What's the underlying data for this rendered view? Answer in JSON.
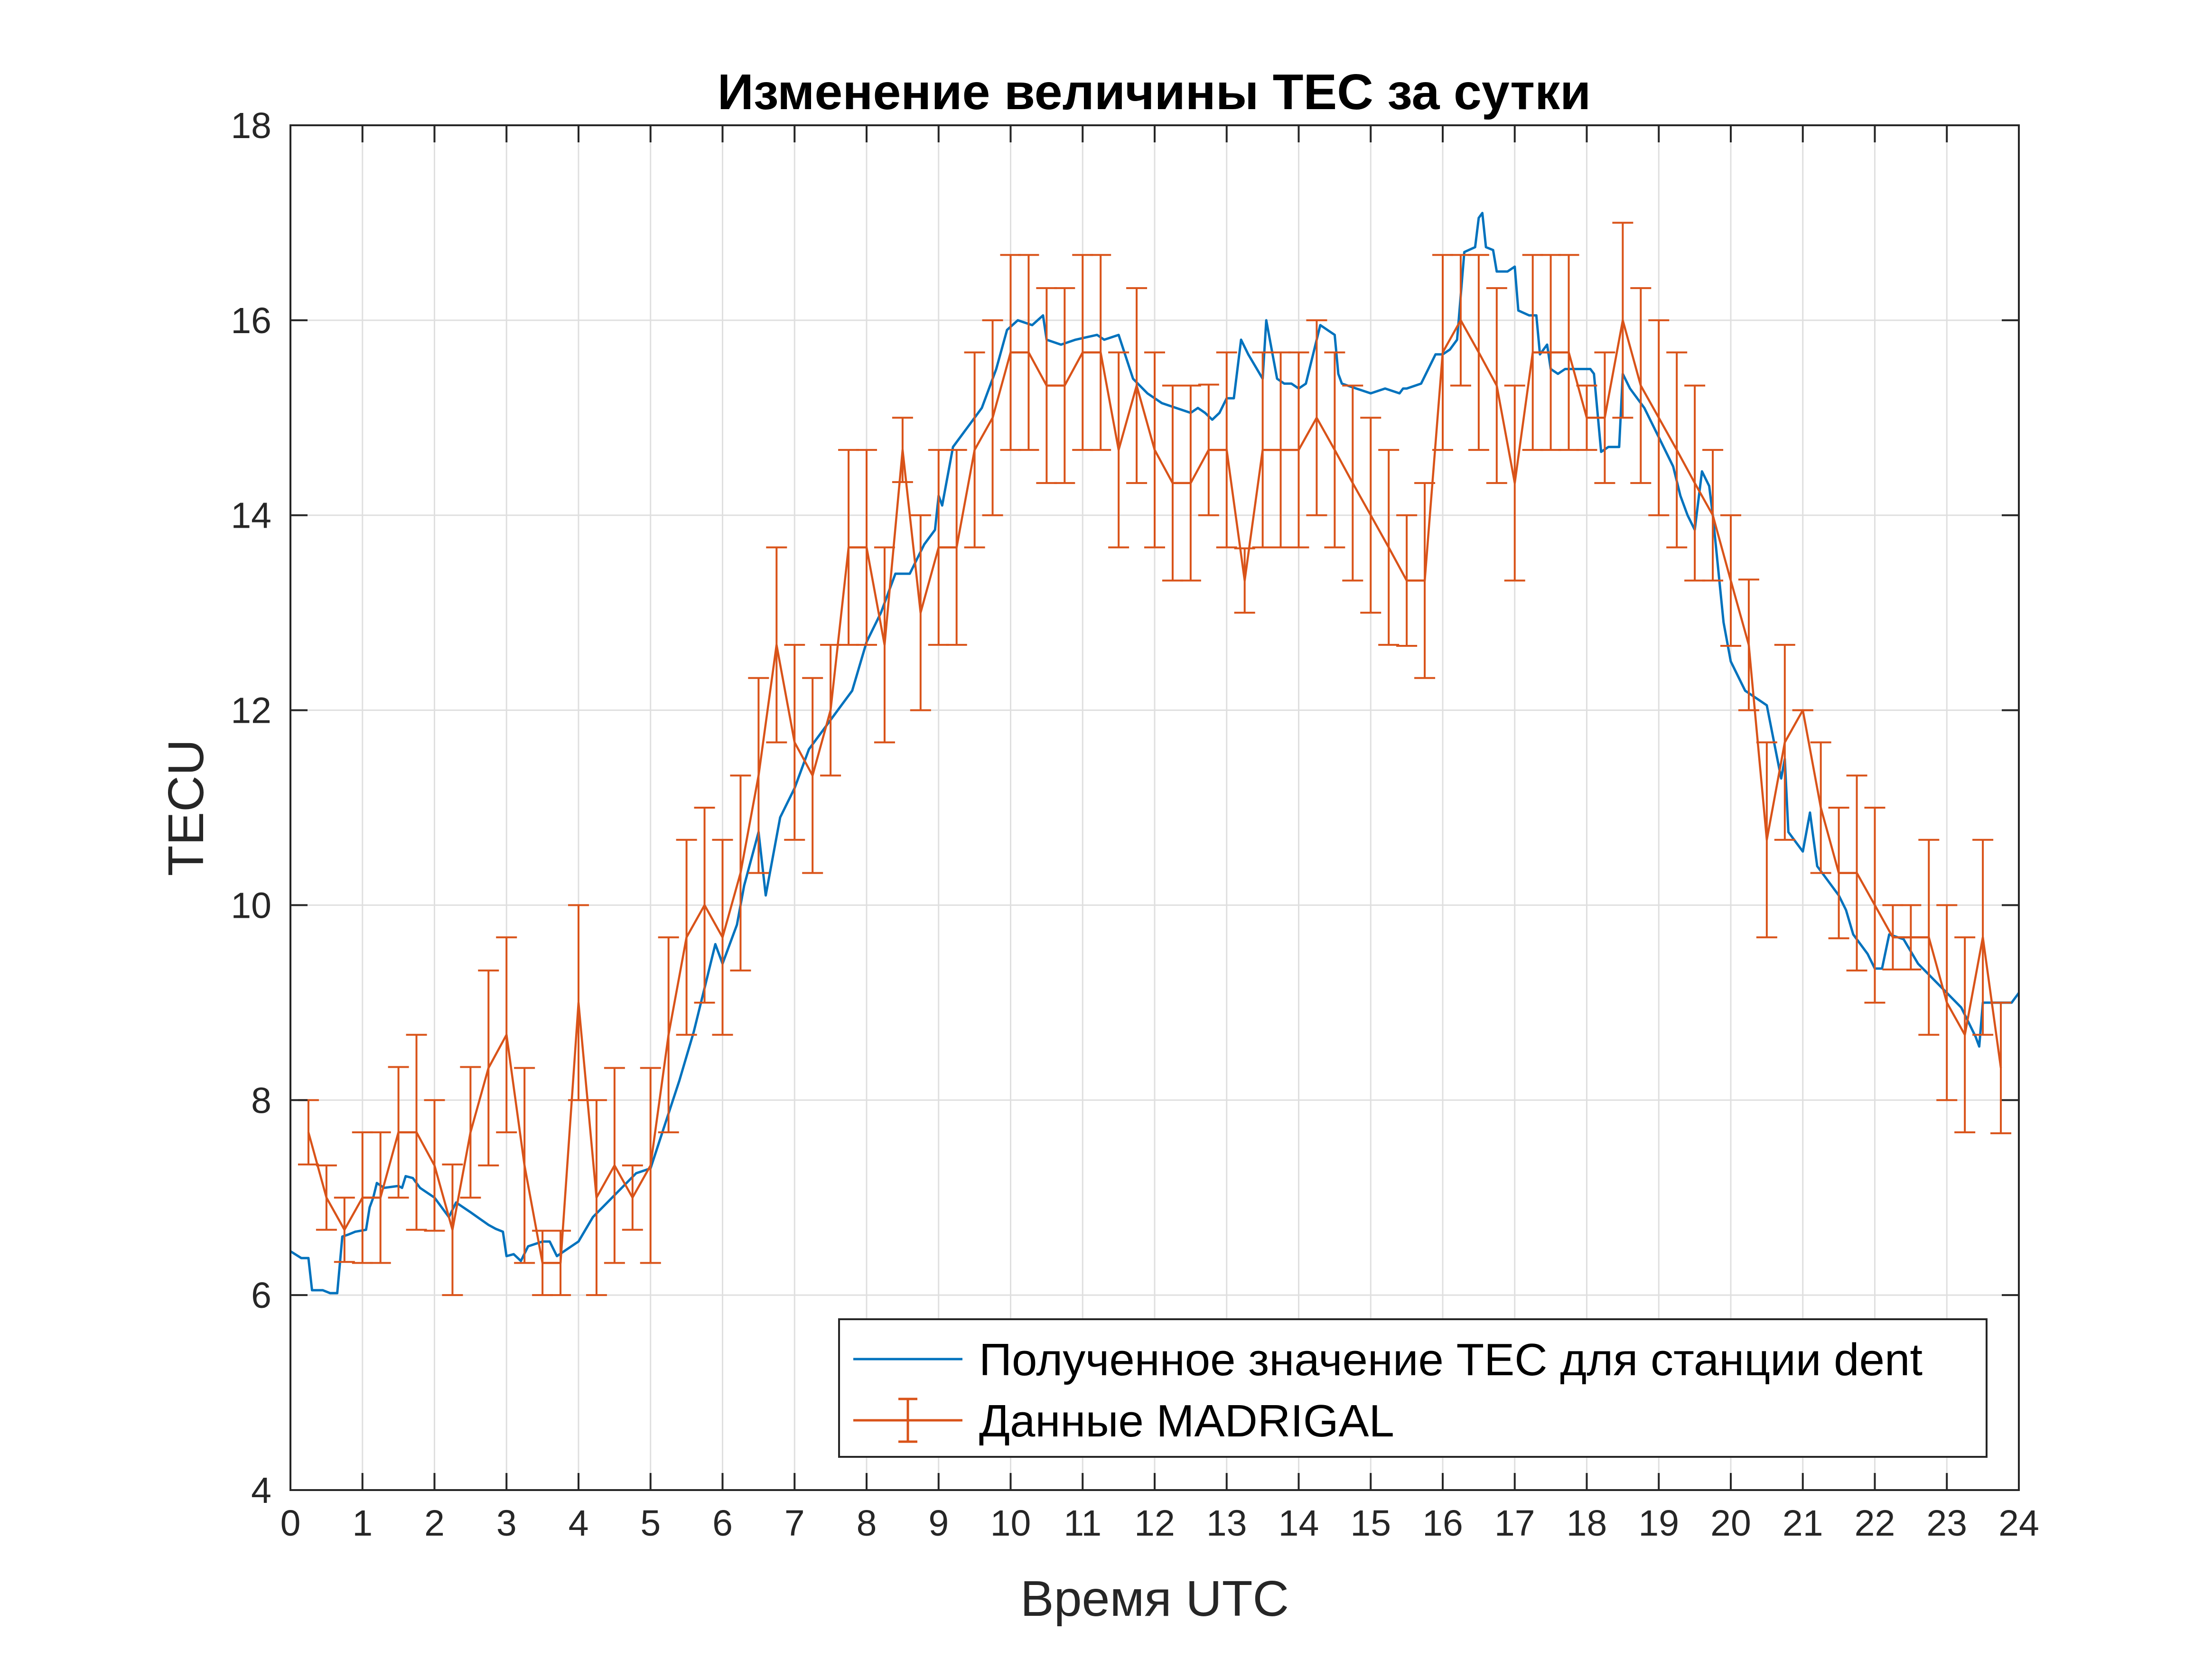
{
  "chart_data": {
    "type": "line",
    "title": "Изменение величины TEC за сутки",
    "xlabel": "Время UTC",
    "ylabel": "TECU",
    "xlim": [
      0,
      24
    ],
    "ylim": [
      4,
      18
    ],
    "xticks": [
      0,
      1,
      2,
      3,
      4,
      5,
      6,
      7,
      8,
      9,
      10,
      11,
      12,
      13,
      14,
      15,
      16,
      17,
      18,
      19,
      20,
      21,
      22,
      23,
      24
    ],
    "yticks": [
      4,
      6,
      8,
      10,
      12,
      14,
      16,
      18
    ],
    "grid": true,
    "legend_position": "bottom-right",
    "colors": {
      "blue": "#0072BD",
      "orange": "#D95319",
      "grid": "#dfdfdf",
      "axis": "#262626"
    },
    "series": [
      {
        "name": "Полученное значение TEC для станции dent",
        "style": "line",
        "x": [
          0,
          0.15,
          0.25,
          0.3,
          0.45,
          0.55,
          0.65,
          0.72,
          0.8,
          0.9,
          1.05,
          1.1,
          1.15,
          1.2,
          1.3,
          1.5,
          1.55,
          1.6,
          1.7,
          1.8,
          2.0,
          2.2,
          2.3,
          2.5,
          2.75,
          2.85,
          2.95,
          3.0,
          3.1,
          3.2,
          3.3,
          3.5,
          3.6,
          3.7,
          3.9,
          4.0,
          4.2,
          4.4,
          4.6,
          4.8,
          5.0,
          5.2,
          5.4,
          5.6,
          5.8,
          5.9,
          6.0,
          6.2,
          6.3,
          6.5,
          6.6,
          6.7,
          6.8,
          7.0,
          7.2,
          7.4,
          7.6,
          7.8,
          8.0,
          8.2,
          8.4,
          8.6,
          8.8,
          8.95,
          9.0,
          9.05,
          9.2,
          9.4,
          9.6,
          9.8,
          9.95,
          10.1,
          10.3,
          10.45,
          10.5,
          10.7,
          10.9,
          11.2,
          11.3,
          11.5,
          11.7,
          11.9,
          12.1,
          12.3,
          12.5,
          12.6,
          12.7,
          12.8,
          12.9,
          13.0,
          13.1,
          13.2,
          13.3,
          13.5,
          13.55,
          13.7,
          13.8,
          13.9,
          14.0,
          14.1,
          14.3,
          14.5,
          14.55,
          14.6,
          14.8,
          15.0,
          15.2,
          15.4,
          15.45,
          15.5,
          15.7,
          15.9,
          16.0,
          16.1,
          16.2,
          16.3,
          16.45,
          16.5,
          16.55,
          16.6,
          16.7,
          16.75,
          16.9,
          17.0,
          17.05,
          17.2,
          17.3,
          17.35,
          17.45,
          17.5,
          17.6,
          17.7,
          17.9,
          18.05,
          18.1,
          18.2,
          18.3,
          18.45,
          18.5,
          18.6,
          18.8,
          19.0,
          19.2,
          19.3,
          19.4,
          19.5,
          19.6,
          19.7,
          19.75,
          19.9,
          20.0,
          20.2,
          20.4,
          20.5,
          20.7,
          20.75,
          20.8,
          21.0,
          21.1,
          21.2,
          21.4,
          21.5,
          21.6,
          21.7,
          21.9,
          22.0,
          22.1,
          22.2,
          22.4,
          22.6,
          22.8,
          23.0,
          23.2,
          23.3,
          23.4,
          23.45,
          23.5,
          23.7,
          23.9,
          24.0
        ],
        "y": [
          6.45,
          6.38,
          6.38,
          6.05,
          6.05,
          6.02,
          6.02,
          6.6,
          6.62,
          6.65,
          6.67,
          6.9,
          7.0,
          7.15,
          7.1,
          7.12,
          7.1,
          7.22,
          7.2,
          7.1,
          7.0,
          6.8,
          6.95,
          6.85,
          6.72,
          6.68,
          6.65,
          6.4,
          6.42,
          6.35,
          6.5,
          6.55,
          6.55,
          6.4,
          6.5,
          6.55,
          6.8,
          6.95,
          7.1,
          7.25,
          7.3,
          7.75,
          8.2,
          8.7,
          9.3,
          9.6,
          9.4,
          9.8,
          10.2,
          10.75,
          10.1,
          10.5,
          10.9,
          11.2,
          11.6,
          11.8,
          12.0,
          12.2,
          12.7,
          13.0,
          13.4,
          13.4,
          13.7,
          13.85,
          14.2,
          14.1,
          14.7,
          14.9,
          15.1,
          15.5,
          15.9,
          16.0,
          15.95,
          16.05,
          15.8,
          15.75,
          15.8,
          15.85,
          15.8,
          15.85,
          15.4,
          15.25,
          15.15,
          15.1,
          15.05,
          15.1,
          15.05,
          14.98,
          15.05,
          15.2,
          15.2,
          15.8,
          15.65,
          15.4,
          16.0,
          15.4,
          15.35,
          15.35,
          15.3,
          15.35,
          15.95,
          15.85,
          15.45,
          15.35,
          15.3,
          15.25,
          15.3,
          15.25,
          15.3,
          15.3,
          15.35,
          15.65,
          15.65,
          15.7,
          15.8,
          16.7,
          16.75,
          17.05,
          17.1,
          16.75,
          16.72,
          16.5,
          16.5,
          16.55,
          16.1,
          16.05,
          16.05,
          15.65,
          15.75,
          15.5,
          15.45,
          15.5,
          15.5,
          15.5,
          15.45,
          14.65,
          14.7,
          14.7,
          15.45,
          15.3,
          15.1,
          14.8,
          14.5,
          14.2,
          14.0,
          13.85,
          14.45,
          14.3,
          14.0,
          12.9,
          12.5,
          12.2,
          12.1,
          12.05,
          11.3,
          11.5,
          10.75,
          10.55,
          10.95,
          10.4,
          10.2,
          10.1,
          9.95,
          9.7,
          9.5,
          9.35,
          9.35,
          9.7,
          9.65,
          9.4,
          9.25,
          9.1,
          8.95,
          8.8,
          8.65,
          8.55,
          9.0,
          9.0,
          9.0,
          9.1
        ]
      },
      {
        "name": "Данные MADRIGAL",
        "style": "line-errorbar",
        "x": [
          0.25,
          0.5,
          0.75,
          1.0,
          1.25,
          1.5,
          1.75,
          2.0,
          2.25,
          2.5,
          2.75,
          3.0,
          3.25,
          3.5,
          3.75,
          4.0,
          4.25,
          4.5,
          4.75,
          5.0,
          5.25,
          5.5,
          5.75,
          6.0,
          6.25,
          6.5,
          6.75,
          7.0,
          7.25,
          7.5,
          7.75,
          8.0,
          8.25,
          8.5,
          8.75,
          9.0,
          9.25,
          9.5,
          9.75,
          10.0,
          10.25,
          10.5,
          10.75,
          11.0,
          11.25,
          11.5,
          11.75,
          12.0,
          12.25,
          12.5,
          12.75,
          13.0,
          13.25,
          13.5,
          13.75,
          14.0,
          14.25,
          14.5,
          14.75,
          15.0,
          15.25,
          15.5,
          15.75,
          16.0,
          16.25,
          16.5,
          16.75,
          17.0,
          17.25,
          17.5,
          17.75,
          18.0,
          18.25,
          18.5,
          18.75,
          19.0,
          19.25,
          19.5,
          19.75,
          20.0,
          20.25,
          20.5,
          20.75,
          21.0,
          21.25,
          21.5,
          21.75,
          22.0,
          22.25,
          22.5,
          22.75,
          23.0,
          23.25,
          23.5,
          23.75
        ],
        "y": [
          7.67,
          7.0,
          6.67,
          7.0,
          7.0,
          7.67,
          7.67,
          7.33,
          6.67,
          7.67,
          8.33,
          8.67,
          7.33,
          6.33,
          6.33,
          9.0,
          7.0,
          7.33,
          7.0,
          7.33,
          8.67,
          9.67,
          10.0,
          9.67,
          10.33,
          11.33,
          12.67,
          11.67,
          11.33,
          12.0,
          13.67,
          13.67,
          12.67,
          14.67,
          13.0,
          13.67,
          13.67,
          14.67,
          15.0,
          15.67,
          15.67,
          15.33,
          15.33,
          15.67,
          15.67,
          14.67,
          15.33,
          14.67,
          14.33,
          14.33,
          14.67,
          14.67,
          13.33,
          14.67,
          14.67,
          14.67,
          15.0,
          14.67,
          14.33,
          14.0,
          13.67,
          13.33,
          13.33,
          15.67,
          16.0,
          15.67,
          15.33,
          14.33,
          15.67,
          15.67,
          15.67,
          15.0,
          15.0,
          16.0,
          15.33,
          15.0,
          14.67,
          14.33,
          14.0,
          13.33,
          12.67,
          10.67,
          11.67,
          12.0,
          11.0,
          10.33,
          10.33,
          10.0,
          9.67,
          9.67,
          9.67,
          9.0,
          8.67,
          9.67,
          8.33
        ],
        "err": [
          0.33,
          0.33,
          0.33,
          0.67,
          0.67,
          0.67,
          1.0,
          0.67,
          0.67,
          0.67,
          1.0,
          1.0,
          1.0,
          0.33,
          0.33,
          1.0,
          1.0,
          1.0,
          0.33,
          1.0,
          1.0,
          1.0,
          1.0,
          1.0,
          1.0,
          1.0,
          1.0,
          1.0,
          1.0,
          0.67,
          1.0,
          1.0,
          1.0,
          0.33,
          1.0,
          1.0,
          1.0,
          1.0,
          1.0,
          1.0,
          1.0,
          1.0,
          1.0,
          1.0,
          1.0,
          1.0,
          1.0,
          1.0,
          1.0,
          1.0,
          0.67,
          1.0,
          0.33,
          1.0,
          1.0,
          1.0,
          1.0,
          1.0,
          1.0,
          1.0,
          1.0,
          0.67,
          1.0,
          1.0,
          0.67,
          1.0,
          1.0,
          1.0,
          1.0,
          1.0,
          1.0,
          0.33,
          0.67,
          1.0,
          1.0,
          1.0,
          1.0,
          1.0,
          0.67,
          0.67,
          0.67,
          1.0,
          1.0,
          0.0,
          0.67,
          0.67,
          1.0,
          1.0,
          0.33,
          0.33,
          1.0,
          1.0,
          1.0,
          1.0,
          0.67
        ]
      }
    ]
  }
}
